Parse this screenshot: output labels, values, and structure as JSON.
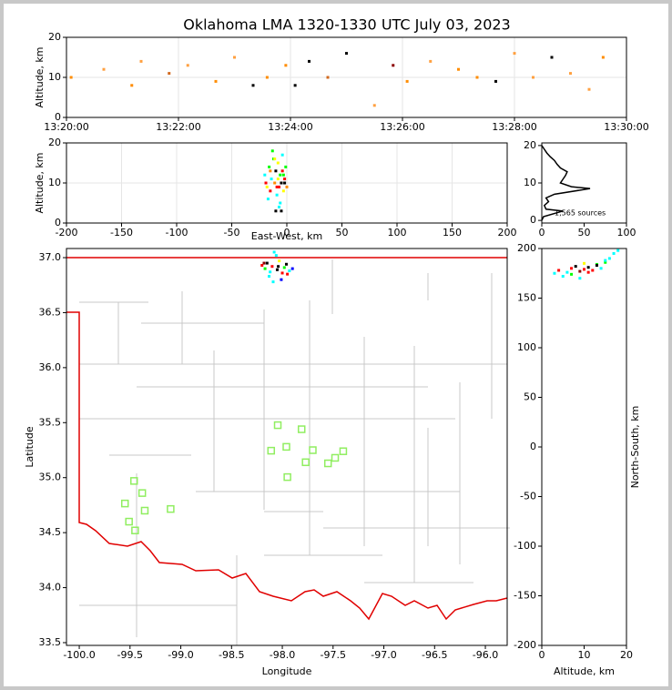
{
  "title": "Oklahoma LMA 1320-1330 UTC July 03, 2023",
  "chart_data": [
    {
      "type": "scatter",
      "ylabel": "Altitude, km",
      "xlim": [
        "13:20:00",
        "13:30:00"
      ],
      "xticks": [
        "13:20:00",
        "13:22:00",
        "13:24:00",
        "13:26:00",
        "13:28:00",
        "13:30:00"
      ],
      "ylim": [
        0,
        20
      ],
      "yticks": [
        0,
        10,
        20
      ],
      "grid": true,
      "x": [
        "13:20:05",
        "13:20:40",
        "13:21:10",
        "13:21:20",
        "13:21:50",
        "13:22:10",
        "13:22:40",
        "13:23:00",
        "13:23:20",
        "13:23:35",
        "13:23:55",
        "13:24:05",
        "13:24:20",
        "13:24:40",
        "13:25:00",
        "13:25:30",
        "13:25:50",
        "13:26:05",
        "13:26:30",
        "13:27:00",
        "13:27:20",
        "13:27:40",
        "13:28:00",
        "13:28:20",
        "13:28:40",
        "13:29:00",
        "13:29:20",
        "13:29:35"
      ],
      "values": [
        10,
        12,
        8,
        14,
        11,
        13,
        9,
        15,
        8,
        10,
        13,
        8,
        14,
        10,
        16,
        3,
        13,
        9,
        14,
        12,
        10,
        9,
        16,
        10,
        15,
        11,
        7,
        15
      ],
      "colors": [
        "#ff8c00",
        "#ffa040",
        "#ff8c00",
        "#ffa040",
        "#d2691e",
        "#ffa040",
        "#ff8c00",
        "#ffa040",
        "#000000",
        "#ff8c00",
        "#ff8c00",
        "#000000",
        "#000000",
        "#d2691e",
        "#000000",
        "#ffa040",
        "#8b0000",
        "#ff8c00",
        "#ffa040",
        "#ff8c00",
        "#ff8c00",
        "#000000",
        "#ffa040",
        "#ffa040",
        "#000000",
        "#ffa040",
        "#ffa040",
        "#ff8c00"
      ]
    },
    {
      "type": "scatter",
      "xlabel": "East-West, km",
      "ylabel": "Altitude, km",
      "xlim": [
        -200,
        200
      ],
      "xticks": [
        -200,
        -150,
        -100,
        -50,
        0,
        50,
        100,
        150,
        200
      ],
      "ylim": [
        0,
        20
      ],
      "yticks": [
        0,
        10,
        20
      ],
      "grid": true,
      "x": [
        -20,
        -18,
        -16,
        -15,
        -14,
        -12,
        -11,
        -10,
        -9,
        -8,
        -7,
        -6,
        -5,
        -4,
        -3,
        -2,
        -1,
        0,
        -19,
        -17,
        -13,
        -10,
        -8,
        -6,
        -4,
        -2,
        -15,
        -11,
        -7,
        -3,
        -5,
        -9
      ],
      "values": [
        12,
        9,
        14,
        8,
        11,
        16,
        10,
        13,
        7,
        15,
        9,
        12,
        10,
        17,
        8,
        11,
        14,
        9,
        10,
        6,
        18,
        3,
        11,
        5,
        13,
        10,
        13,
        16,
        4,
        12,
        3,
        9
      ],
      "colors": [
        "#00ffff",
        "#ffff00",
        "#00ff00",
        "#ff0000",
        "#00ffff",
        "#00ff00",
        "#ff8c00",
        "#000000",
        "#00ffff",
        "#ffff00",
        "#ff0000",
        "#00ff00",
        "#000000",
        "#00ffff",
        "#ffff00",
        "#ff0000",
        "#00ff00",
        "#ff8c00",
        "#ff0000",
        "#00ffff",
        "#00ff00",
        "#000000",
        "#ffff00",
        "#00ffff",
        "#ff0000",
        "#000000",
        "#ff8c00",
        "#ffff00",
        "#00ffff",
        "#00ff00",
        "#000000",
        "#ff0000"
      ]
    },
    {
      "type": "line",
      "annotation": "1,565 sources",
      "xlim": [
        0,
        100
      ],
      "xticks": [
        0,
        50,
        100
      ],
      "ylim": [
        -0.7,
        20.7
      ],
      "yticks": [
        0,
        10,
        20
      ],
      "x": [
        0,
        2,
        25,
        5,
        3,
        8,
        5,
        15,
        57,
        35,
        22,
        25,
        28,
        30,
        22,
        18,
        15,
        10,
        6,
        3,
        0
      ],
      "values": [
        0,
        1,
        2.5,
        3,
        4,
        5,
        6,
        7,
        8.5,
        9,
        10,
        11,
        12,
        13,
        14,
        15,
        16,
        17,
        18,
        19,
        20
      ]
    },
    {
      "type": "scatter",
      "xlabel": "Longitude",
      "ylabel": "Latitude",
      "xlim": [
        -100.126,
        -95.785
      ],
      "xticks": [
        {
          "value": -100,
          "label": "-100.0"
        },
        {
          "value": -99.5,
          "label": "-99.5"
        },
        {
          "value": -99,
          "label": "-99.0"
        },
        {
          "value": -98.5,
          "label": "-98.5"
        },
        {
          "value": -98,
          "label": "-98.0"
        },
        {
          "value": -97.5,
          "label": "-97.5"
        },
        {
          "value": -97,
          "label": "-97.0"
        },
        {
          "value": -96.5,
          "label": "-96.5"
        },
        {
          "value": -96,
          "label": "-96.0"
        }
      ],
      "ylim": [
        33.475,
        37.083
      ],
      "yticks": [
        {
          "value": 33.5,
          "label": "33.5"
        },
        {
          "value": 34,
          "label": "34.0"
        },
        {
          "value": 34.5,
          "label": "34.5"
        },
        {
          "value": 35,
          "label": "35.0"
        },
        {
          "value": 35.5,
          "label": "35.5"
        },
        {
          "value": 36,
          "label": "36.0"
        },
        {
          "value": 36.5,
          "label": "36.5"
        },
        {
          "value": 37,
          "label": "37.0"
        }
      ],
      "x": [
        -98.2,
        -98.17,
        -98.15,
        -98.12,
        -98.1,
        -98.08,
        -98.05,
        -98.03,
        -98.0,
        -97.98,
        -97.96,
        -97.93,
        -97.9,
        -98.18,
        -98.13,
        -98.06,
        -98.01,
        -97.95,
        -98.09,
        -98.04
      ],
      "values": [
        36.93,
        36.9,
        36.95,
        36.87,
        36.92,
        37.05,
        36.89,
        36.97,
        36.86,
        36.91,
        36.94,
        36.88,
        36.9,
        36.95,
        36.83,
        37.02,
        36.8,
        36.85,
        36.78,
        36.92
      ],
      "colors": [
        "#ff0000",
        "#00ff00",
        "#000000",
        "#00ffff",
        "#ff0000",
        "#00ffff",
        "#000000",
        "#ffff00",
        "#ff0000",
        "#00ff00",
        "#000000",
        "#00ffff",
        "#0000ff",
        "#8b0000",
        "#00ffff",
        "#00ffff",
        "#0000ff",
        "#ff0000",
        "#00ffff",
        "#000000"
      ],
      "stations": {
        "color": "#90ee60",
        "x": [
          -98.045,
          -97.81,
          -98.11,
          -97.96,
          -97.7,
          -97.4,
          -97.77,
          -97.48,
          -97.55,
          -97.95,
          -99.46,
          -99.38,
          -99.55,
          -99.355,
          -99.1,
          -99.51,
          -99.45
        ],
        "values": [
          35.477,
          35.44,
          35.245,
          35.28,
          35.25,
          35.24,
          35.14,
          35.18,
          35.13,
          35.005,
          34.97,
          34.86,
          34.765,
          34.7,
          34.715,
          34.6,
          34.52
        ]
      }
    },
    {
      "type": "scatter",
      "xlabel": "Altitude, km",
      "ylabel": "North-South, km",
      "xlim": [
        0,
        20
      ],
      "xticks": [
        0,
        10,
        20
      ],
      "ylim": [
        -200,
        200
      ],
      "yticks": [
        -200,
        -150,
        -100,
        -50,
        0,
        50,
        100,
        150,
        200
      ],
      "x": [
        3,
        4,
        6,
        7,
        8,
        9,
        10,
        11,
        12,
        13,
        14,
        15,
        16,
        17,
        18,
        5,
        9,
        11,
        13,
        15,
        7,
        10
      ],
      "values": [
        175,
        178,
        176,
        180,
        182,
        177,
        179,
        181,
        178,
        184,
        180,
        186,
        190,
        195,
        198,
        172,
        170,
        176,
        183,
        188,
        174,
        185
      ],
      "colors": [
        "#00ffff",
        "#ff0000",
        "#00ffff",
        "#ff0000",
        "#000000",
        "#8b0000",
        "#ff0000",
        "#000000",
        "#ff0000",
        "#00ff00",
        "#00ffff",
        "#00ff00",
        "#00ffff",
        "#00ffff",
        "#00ffff",
        "#00ffff",
        "#00ffff",
        "#ff0000",
        "#000000",
        "#00ffff",
        "#00ff00",
        "#ffff00"
      ]
    }
  ]
}
